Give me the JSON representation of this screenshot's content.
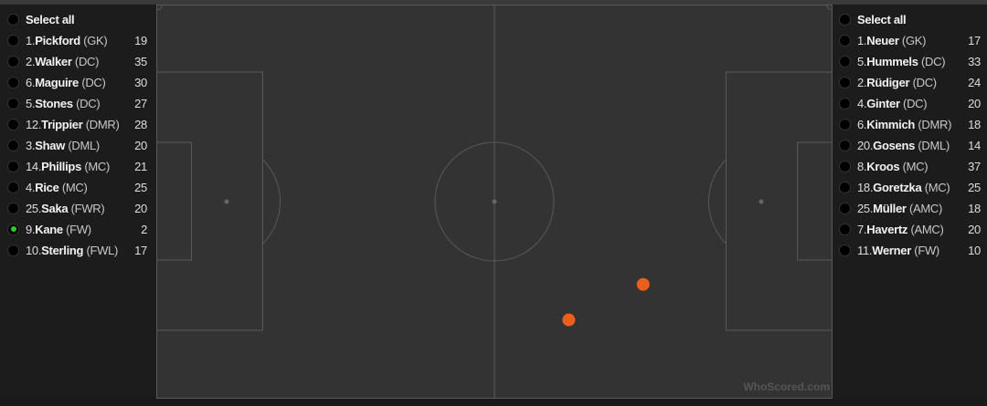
{
  "left_team": {
    "select_all": "Select all",
    "players": [
      {
        "number": "1.",
        "name": "Pickford",
        "position": "(GK)",
        "count": "19",
        "selected": false
      },
      {
        "number": "2.",
        "name": "Walker",
        "position": "(DC)",
        "count": "35",
        "selected": false
      },
      {
        "number": "6.",
        "name": "Maguire",
        "position": "(DC)",
        "count": "30",
        "selected": false
      },
      {
        "number": "5.",
        "name": "Stones",
        "position": "(DC)",
        "count": "27",
        "selected": false
      },
      {
        "number": "12.",
        "name": "Trippier",
        "position": "(DMR)",
        "count": "28",
        "selected": false
      },
      {
        "number": "3.",
        "name": "Shaw",
        "position": "(DML)",
        "count": "20",
        "selected": false
      },
      {
        "number": "14.",
        "name": "Phillips",
        "position": "(MC)",
        "count": "21",
        "selected": false
      },
      {
        "number": "4.",
        "name": "Rice",
        "position": "(MC)",
        "count": "25",
        "selected": false
      },
      {
        "number": "25.",
        "name": "Saka",
        "position": "(FWR)",
        "count": "20",
        "selected": false
      },
      {
        "number": "9.",
        "name": "Kane",
        "position": "(FW)",
        "count": "2",
        "selected": true
      },
      {
        "number": "10.",
        "name": "Sterling",
        "position": "(FWL)",
        "count": "17",
        "selected": false
      }
    ]
  },
  "right_team": {
    "select_all": "Select all",
    "players": [
      {
        "number": "1.",
        "name": "Neuer",
        "position": "(GK)",
        "count": "17",
        "selected": false
      },
      {
        "number": "5.",
        "name": "Hummels",
        "position": "(DC)",
        "count": "33",
        "selected": false
      },
      {
        "number": "2.",
        "name": "Rüdiger",
        "position": "(DC)",
        "count": "24",
        "selected": false
      },
      {
        "number": "4.",
        "name": "Ginter",
        "position": "(DC)",
        "count": "20",
        "selected": false
      },
      {
        "number": "6.",
        "name": "Kimmich",
        "position": "(DMR)",
        "count": "18",
        "selected": false
      },
      {
        "number": "20.",
        "name": "Gosens",
        "position": "(DML)",
        "count": "14",
        "selected": false
      },
      {
        "number": "8.",
        "name": "Kroos",
        "position": "(MC)",
        "count": "37",
        "selected": false
      },
      {
        "number": "18.",
        "name": "Goretzka",
        "position": "(MC)",
        "count": "25",
        "selected": false
      },
      {
        "number": "25.",
        "name": "Müller",
        "position": "(AMC)",
        "count": "18",
        "selected": false
      },
      {
        "number": "7.",
        "name": "Havertz",
        "position": "(AMC)",
        "count": "20",
        "selected": false
      },
      {
        "number": "11.",
        "name": "Werner",
        "position": "(FW)",
        "count": "10",
        "selected": false
      }
    ]
  },
  "pitch": {
    "watermark": "WhoScored.com",
    "event_color": "#e8601c",
    "events": [
      {
        "x": 72,
        "y": 29
      },
      {
        "x": 61,
        "y": 20
      }
    ]
  }
}
